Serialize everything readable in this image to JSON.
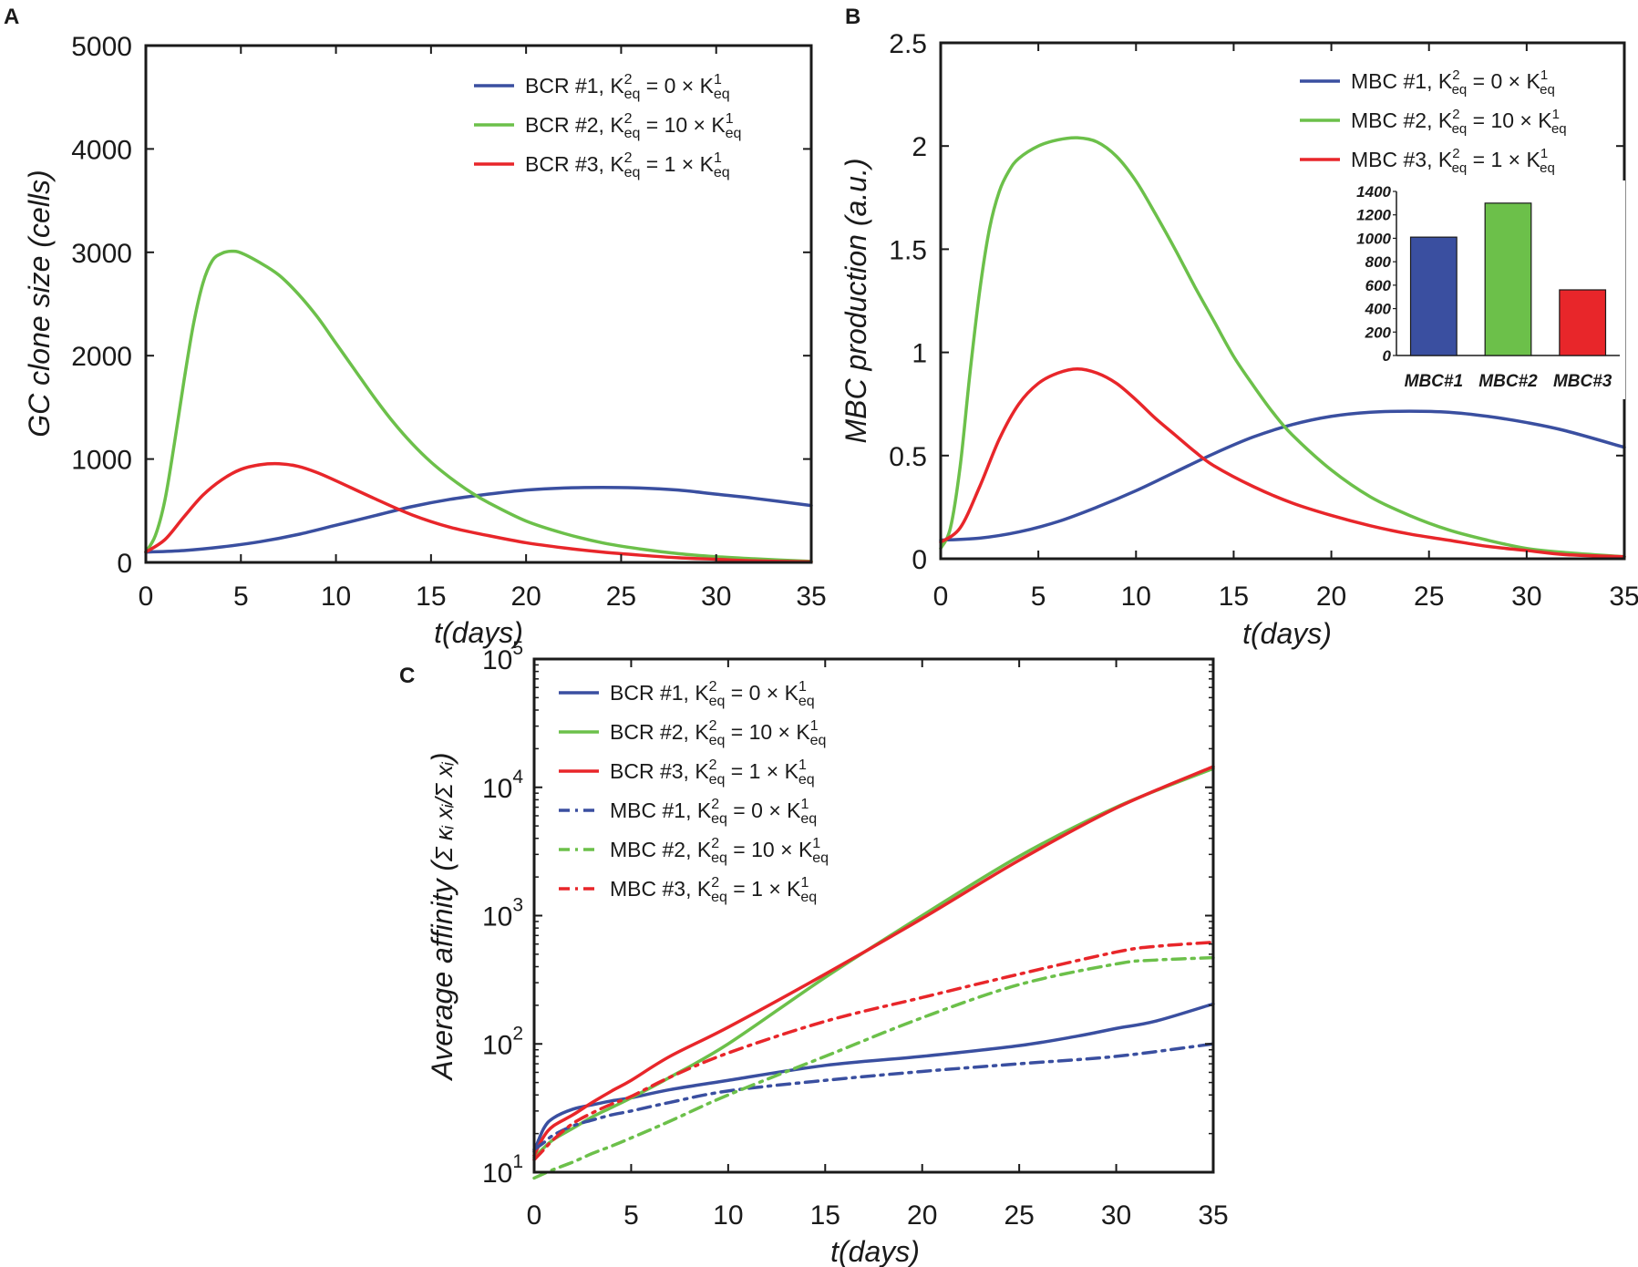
{
  "colors": {
    "blue": "#3a4fa0",
    "green": "#6cc04a",
    "red": "#e8262a"
  },
  "chart_data": [
    {
      "panel": "A",
      "type": "line",
      "xlabel": "t(days)",
      "ylabel": "GC clone size (cells)",
      "xlim": [
        0,
        35
      ],
      "ylim": [
        0,
        5000
      ],
      "yscale": "linear",
      "xticks": [
        0,
        5,
        10,
        15,
        20,
        25,
        30,
        35
      ],
      "yticks": [
        0,
        1000,
        2000,
        3000,
        4000,
        5000
      ],
      "legend_position": "top-right",
      "series": [
        {
          "name": "BCR #1",
          "legend": {
            "head": "BCR #1, ",
            "factor": "0"
          },
          "color": "blue",
          "dash": "solid",
          "x": [
            0,
            2,
            4,
            6,
            8,
            10,
            12,
            14,
            16,
            18,
            20,
            22,
            24,
            26,
            28,
            30,
            32,
            35
          ],
          "y": [
            100,
            115,
            150,
            200,
            270,
            360,
            450,
            540,
            610,
            660,
            700,
            720,
            725,
            720,
            700,
            660,
            620,
            550
          ]
        },
        {
          "name": "BCR #2",
          "legend": {
            "head": "BCR #2, ",
            "factor": "10"
          },
          "color": "green",
          "dash": "solid",
          "x": [
            0,
            0.5,
            1,
            1.5,
            2,
            2.5,
            3,
            3.5,
            4,
            4.5,
            5,
            6,
            7,
            8,
            9,
            10,
            11,
            12,
            13,
            14,
            15,
            16,
            17,
            18,
            20,
            22,
            24,
            26,
            28,
            30,
            32,
            35
          ],
          "y": [
            100,
            260,
            600,
            1150,
            1750,
            2300,
            2700,
            2920,
            2990,
            3010,
            2995,
            2900,
            2780,
            2600,
            2380,
            2120,
            1860,
            1600,
            1360,
            1150,
            970,
            820,
            690,
            580,
            400,
            280,
            190,
            130,
            85,
            55,
            35,
            10
          ]
        },
        {
          "name": "BCR #3",
          "legend": {
            "head": "BCR #3, ",
            "factor": "1"
          },
          "color": "red",
          "dash": "solid",
          "x": [
            0,
            1,
            2,
            3,
            4,
            5,
            6,
            7,
            8,
            9,
            10,
            12,
            14,
            16,
            18,
            20,
            22,
            24,
            26,
            28,
            30,
            32,
            35
          ],
          "y": [
            100,
            220,
            440,
            650,
            800,
            900,
            945,
            955,
            930,
            870,
            790,
            620,
            460,
            340,
            260,
            190,
            140,
            100,
            70,
            45,
            30,
            15,
            5
          ]
        }
      ]
    },
    {
      "panel": "B",
      "type": "line",
      "xlabel": "t(days)",
      "ylabel": "MBC production (a.u.)",
      "xlim": [
        0,
        35
      ],
      "ylim": [
        0,
        2.5
      ],
      "yscale": "linear",
      "xticks": [
        0,
        5,
        10,
        15,
        20,
        25,
        30,
        35
      ],
      "yticks": [
        0,
        0.5,
        1,
        1.5,
        2,
        2.5
      ],
      "legend_position": "top-right",
      "series": [
        {
          "name": "MBC #1",
          "legend": {
            "head": "MBC #1, ",
            "factor": "0"
          },
          "color": "blue",
          "dash": "solid",
          "x": [
            0,
            2,
            4,
            6,
            8,
            10,
            12,
            14,
            16,
            18,
            20,
            22,
            24,
            26,
            28,
            30,
            32,
            35
          ],
          "y": [
            0.09,
            0.1,
            0.13,
            0.18,
            0.25,
            0.33,
            0.42,
            0.51,
            0.59,
            0.65,
            0.69,
            0.71,
            0.715,
            0.71,
            0.69,
            0.66,
            0.62,
            0.54
          ]
        },
        {
          "name": "MBC #2",
          "legend": {
            "head": "MBC #2, ",
            "factor": "10"
          },
          "color": "green",
          "dash": "solid",
          "x": [
            0,
            0.5,
            1,
            1.5,
            2,
            2.5,
            3,
            3.5,
            4,
            5,
            6,
            7,
            8,
            9,
            10,
            11,
            12,
            13,
            14,
            15,
            16,
            17,
            18,
            20,
            22,
            24,
            26,
            28,
            30,
            32,
            35
          ],
          "y": [
            0.05,
            0.15,
            0.45,
            0.9,
            1.3,
            1.6,
            1.78,
            1.88,
            1.94,
            2.0,
            2.03,
            2.04,
            2.02,
            1.95,
            1.83,
            1.67,
            1.5,
            1.32,
            1.15,
            0.98,
            0.84,
            0.71,
            0.6,
            0.43,
            0.3,
            0.21,
            0.14,
            0.09,
            0.05,
            0.03,
            0.01
          ]
        },
        {
          "name": "MBC #3",
          "legend": {
            "head": "MBC #3, ",
            "factor": "1"
          },
          "color": "red",
          "dash": "solid",
          "x": [
            0,
            1,
            2,
            3,
            4,
            5,
            6,
            7,
            8,
            9,
            10,
            11,
            12,
            13,
            14,
            16,
            18,
            20,
            22,
            24,
            26,
            28,
            30,
            32,
            35
          ],
          "y": [
            0.08,
            0.15,
            0.35,
            0.58,
            0.75,
            0.85,
            0.9,
            0.92,
            0.9,
            0.85,
            0.77,
            0.68,
            0.6,
            0.52,
            0.45,
            0.35,
            0.27,
            0.21,
            0.16,
            0.12,
            0.09,
            0.06,
            0.04,
            0.02,
            0.01
          ]
        }
      ],
      "inset": {
        "type": "bar",
        "categories": [
          "MBC#1",
          "MBC#2",
          "MBC#3"
        ],
        "values": [
          1010,
          1300,
          560
        ],
        "colors": [
          "blue",
          "green",
          "red"
        ],
        "ylim": [
          0,
          1400
        ],
        "yticks": [
          0,
          200,
          400,
          600,
          800,
          1000,
          1200,
          1400
        ]
      }
    },
    {
      "panel": "C",
      "type": "line",
      "xlabel": "t(days)",
      "ylabel_main": "Average affinity (",
      "ylabel_formula": "Σ κᵢ xᵢ/Σ xᵢ",
      "ylabel_close": ")",
      "xlim": [
        0,
        35
      ],
      "ylim": [
        10,
        100000
      ],
      "yscale": "log",
      "xticks": [
        0,
        5,
        10,
        15,
        20,
        25,
        30,
        35
      ],
      "yticks": [
        10,
        100,
        1000,
        10000,
        100000
      ],
      "ytick_base": "10",
      "ytick_exps": [
        "1",
        "2",
        "3",
        "4",
        "5"
      ],
      "legend_position": "top-left",
      "series": [
        {
          "name": "BCR #1",
          "legend": {
            "head": "BCR #1, ",
            "factor": "0"
          },
          "color": "blue",
          "dash": "solid",
          "x": [
            0,
            0.5,
            1,
            2,
            3,
            4,
            5,
            7,
            10,
            15,
            20,
            25,
            28,
            30,
            32,
            35
          ],
          "y": [
            14.5,
            22,
            26.5,
            31,
            33.5,
            36,
            38,
            44,
            52,
            68,
            80,
            97,
            115,
            132,
            150,
            205
          ]
        },
        {
          "name": "BCR #2",
          "legend": {
            "head": "BCR #2, ",
            "factor": "10"
          },
          "color": "green",
          "dash": "solid",
          "x": [
            0,
            0.5,
            1,
            2,
            3,
            4,
            5,
            7,
            10,
            15,
            20,
            25,
            30,
            35
          ],
          "y": [
            13,
            15.5,
            18,
            22,
            27,
            32,
            38,
            55,
            100,
            330,
            1000,
            2900,
            7000,
            14000
          ]
        },
        {
          "name": "BCR #3",
          "legend": {
            "head": "BCR #3, ",
            "factor": "1"
          },
          "color": "red",
          "dash": "solid",
          "x": [
            0,
            0.5,
            1,
            2,
            3,
            4,
            5,
            7,
            10,
            15,
            20,
            25,
            30,
            35
          ],
          "y": [
            13.5,
            19,
            23,
            28,
            35,
            43,
            52,
            80,
            135,
            350,
            950,
            2700,
            6900,
            14500
          ]
        },
        {
          "name": "MBC #1",
          "legend": {
            "head": "MBC #1, ",
            "factor": "0"
          },
          "color": "blue",
          "dash": "dashdot",
          "x": [
            0,
            0.5,
            1,
            2,
            3,
            4,
            5,
            7,
            10,
            15,
            20,
            25,
            30,
            35
          ],
          "y": [
            15,
            17,
            19.5,
            23,
            25.5,
            28,
            30,
            35,
            43,
            52,
            61,
            70,
            80,
            100
          ]
        },
        {
          "name": "MBC #2",
          "legend": {
            "head": "MBC #2, ",
            "factor": "10"
          },
          "color": "green",
          "dash": "dashdot",
          "x": [
            0,
            1,
            2,
            3,
            4,
            5,
            7,
            10,
            15,
            20,
            25,
            30,
            32,
            35
          ],
          "y": [
            9,
            10.5,
            12,
            14,
            16,
            18.5,
            25,
            40,
            80,
            160,
            290,
            420,
            450,
            470
          ]
        },
        {
          "name": "MBC #3",
          "legend": {
            "head": "MBC #3, ",
            "factor": "1"
          },
          "color": "red",
          "dash": "dashdot",
          "x": [
            0,
            0.5,
            1,
            2,
            3,
            4,
            5,
            7,
            10,
            15,
            20,
            25,
            30,
            32,
            35
          ],
          "y": [
            12.5,
            15,
            18,
            24,
            29,
            34,
            39,
            55,
            85,
            150,
            230,
            350,
            520,
            575,
            620
          ]
        }
      ]
    }
  ],
  "legend_formula": {
    "k": "K",
    "sub": "eq",
    "sup2": "2",
    "sup1": "1",
    "eq": " = ",
    "times": " × "
  }
}
